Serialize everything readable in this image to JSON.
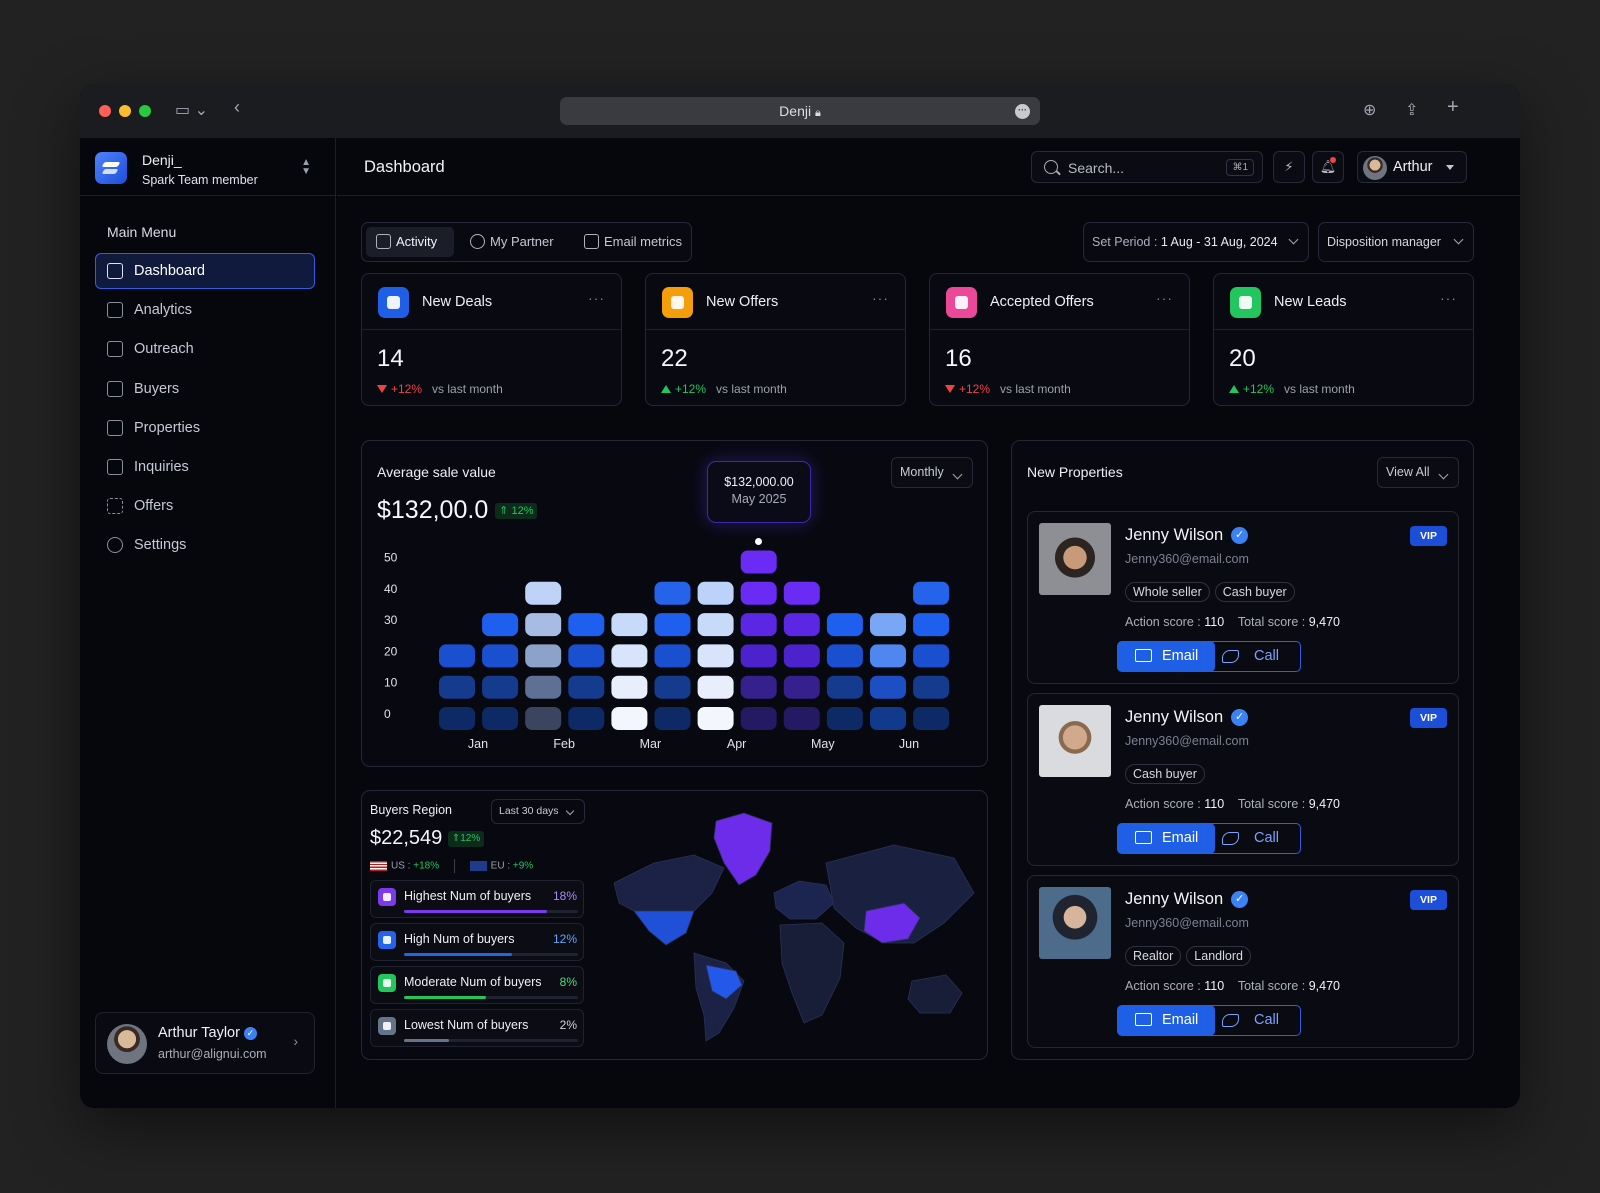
{
  "browser": {
    "url_title": "Denji"
  },
  "team": {
    "name": "Denji_",
    "role": "Spark Team member"
  },
  "menu": {
    "title": "Main Menu",
    "items": [
      {
        "label": "Dashboard",
        "active": true
      },
      {
        "label": "Analytics"
      },
      {
        "label": "Outreach"
      },
      {
        "label": "Buyers"
      },
      {
        "label": "Properties"
      },
      {
        "label": "Inquiries"
      },
      {
        "label": "Offers"
      },
      {
        "label": "Settings"
      }
    ]
  },
  "user": {
    "name": "Arthur Taylor",
    "email": "arthur@alignui.com",
    "short": "Arthur"
  },
  "header": {
    "title": "Dashboard",
    "search_placeholder": "Search...",
    "search_shortcut": "⌘1"
  },
  "tabs": [
    "Activity",
    "My Partner",
    "Email metrics"
  ],
  "period": {
    "label": "Set Period :",
    "value": "1 Aug - 31 Aug, 2024"
  },
  "disposition": "Disposition manager",
  "kpis": [
    {
      "label": "New Deals",
      "value": "14",
      "delta": "+12%",
      "trend": "down",
      "note": "vs last month",
      "color": "#1f5fe6"
    },
    {
      "label": "New Offers",
      "value": "22",
      "delta": "+12%",
      "trend": "up",
      "note": "vs last month",
      "color": "#f59e0b"
    },
    {
      "label": "Accepted Offers",
      "value": "16",
      "delta": "+12%",
      "trend": "down",
      "note": "vs last month",
      "color": "#ec4899"
    },
    {
      "label": "New Leads",
      "value": "20",
      "delta": "+12%",
      "trend": "up",
      "note": "vs last month",
      "color": "#22c55e"
    }
  ],
  "avg_sale": {
    "title": "Average sale value",
    "value": "$132,00.0",
    "change": "12%",
    "period_select": "Monthly",
    "tooltip": {
      "value": "$132,000.00",
      "date": "May 2025"
    }
  },
  "chart_data": {
    "type": "heatmap",
    "title": "Average sale value",
    "y_ticks": [
      0,
      10,
      20,
      30,
      40,
      50
    ],
    "x_labels": [
      "Jan",
      "Feb",
      "Mar",
      "Apr",
      "May",
      "Jun"
    ],
    "columns": [
      {
        "value": 20,
        "tone": "blue"
      },
      {
        "value": 30,
        "tone": "blue"
      },
      {
        "value": 40,
        "tone": "gray"
      },
      {
        "value": 30,
        "tone": "blue"
      },
      {
        "value": 30,
        "tone": "white"
      },
      {
        "value": 40,
        "tone": "blue"
      },
      {
        "value": 40,
        "tone": "white"
      },
      {
        "value": 50,
        "tone": "purple"
      },
      {
        "value": 40,
        "tone": "purple"
      },
      {
        "value": 30,
        "tone": "blue"
      },
      {
        "value": 30,
        "tone": "lightblue"
      },
      {
        "value": 40,
        "tone": "blue"
      }
    ],
    "highlight_column": 7
  },
  "buyers_region": {
    "title": "Buyers Region",
    "range": "Last 30 days",
    "value": "$22,549",
    "change": "12%",
    "us": {
      "label": "US :",
      "value": "+18%"
    },
    "eu": {
      "label": "EU :",
      "value": "+9%"
    },
    "rows": [
      {
        "label": "Highest Num of buyers",
        "pct": "18%",
        "level": 0.82,
        "color": "#7c3aed",
        "pct_color": "#a78bfa"
      },
      {
        "label": "High Num of buyers",
        "pct": "12%",
        "level": 0.62,
        "color": "#2563eb",
        "pct_color": "#60a5fa"
      },
      {
        "label": "Moderate Num of buyers",
        "pct": "8%",
        "level": 0.47,
        "color": "#22c55e",
        "pct_color": "#4ade80"
      },
      {
        "label": "Lowest Num of buyers",
        "pct": "2%",
        "level": 0.26,
        "color": "#64748b",
        "pct_color": "#d1d5db"
      }
    ]
  },
  "new_properties": {
    "title": "New Properties",
    "view_all": "View All",
    "items": [
      {
        "name": "Jenny Wilson",
        "email": "Jenny360@email.com",
        "badge": "VIP",
        "tags": [
          "Whole seller",
          "Cash buyer"
        ],
        "action_label": "Action score :",
        "action_score": "110",
        "total_label": "Total score :",
        "total_score": "9,470",
        "email_btn": "Email",
        "call_btn": "Call"
      },
      {
        "name": "Jenny Wilson",
        "email": "Jenny360@email.com",
        "badge": "VIP",
        "tags": [
          "Cash buyer"
        ],
        "action_label": "Action score :",
        "action_score": "110",
        "total_label": "Total score :",
        "total_score": "9,470",
        "email_btn": "Email",
        "call_btn": "Call"
      },
      {
        "name": "Jenny Wilson",
        "email": "Jenny360@email.com",
        "badge": "VIP",
        "tags": [
          "Realtor",
          "Landlord"
        ],
        "action_label": "Action score :",
        "action_score": "110",
        "total_label": "Total score :",
        "total_score": "9,470",
        "email_btn": "Email",
        "call_btn": "Call"
      }
    ]
  }
}
